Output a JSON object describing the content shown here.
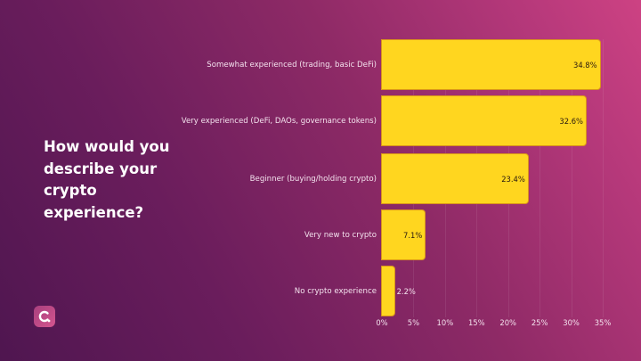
{
  "question": {
    "title": "How would you describe your crypto experience?"
  },
  "logo": {
    "icon": "c-logo-icon",
    "color": "#c24a86"
  },
  "colors": {
    "bar": "#ffd61f",
    "bar_border": "#d9931c",
    "bg_dark": "#4f1650",
    "bg_light": "#cd4283"
  },
  "chart_data": {
    "type": "bar",
    "orientation": "horizontal",
    "title": "How would you describe your crypto experience?",
    "categories": [
      "Somewhat experienced (trading, basic DeFi)",
      "Very experienced (DeFi, DAOs, governance tokens)",
      "Beginner (buying/holding crypto)",
      "Very new to crypto",
      "No crypto experience"
    ],
    "values": [
      34.8,
      32.6,
      23.4,
      7.1,
      2.2
    ],
    "value_labels": [
      "34.8%",
      "32.6%",
      "23.4%",
      "7.1%",
      "2.2%"
    ],
    "xlabel": "",
    "ylabel": "",
    "xlim": [
      0,
      35
    ],
    "xticks": [
      "0%",
      "5%",
      "10%",
      "15%",
      "20%",
      "25%",
      "30%",
      "35%"
    ],
    "grid": "vertical",
    "legend": "none"
  }
}
